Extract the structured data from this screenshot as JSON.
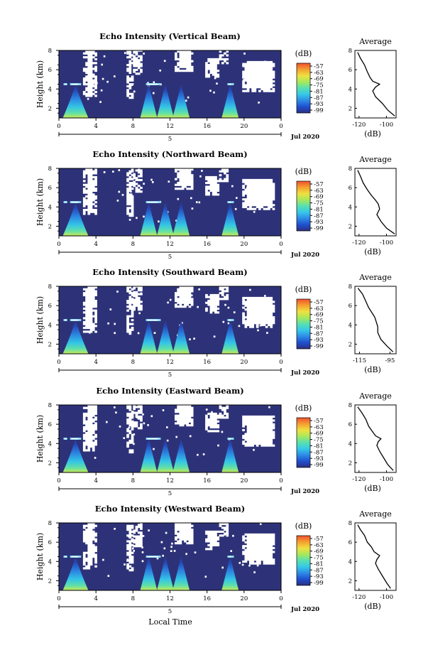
{
  "figure": {
    "xlabel": "Local Time",
    "date_label": "Jul 2020",
    "colorbar_unit": "(dB)",
    "colorbar_ticks": [
      "-57",
      "-63",
      "-69",
      "-75",
      "-81",
      "-87",
      "-93",
      "-99"
    ],
    "colorscale": [
      "#2d2f80",
      "#1f4fcf",
      "#2e8be6",
      "#36c8e8",
      "#58e0b0",
      "#a8e85a",
      "#f0e040",
      "#f5a030",
      "#f05030"
    ],
    "colors": {
      "background_fill": "#2d3278",
      "no_data": "#ffffff",
      "axis": "#000000"
    },
    "average_title": "Average",
    "average_xlabel": "(dB)"
  },
  "chart_data": [
    {
      "type": "heatmap",
      "title": "Echo Intensity (Vertical Beam)",
      "ylabel": "Height (km)",
      "xlabel": "Local Time",
      "x_ticks": [
        "0",
        "4",
        "8",
        "12",
        "16",
        "20",
        "0"
      ],
      "x_day_label": "5",
      "y_ticks": [
        "8",
        "6",
        "4",
        "2"
      ],
      "xlim_hours": [
        0,
        24
      ],
      "ylim_km": [
        1,
        8
      ],
      "colorbar": {
        "unit": "(dB)",
        "range": [
          -99,
          -57
        ]
      },
      "plumes_hours": [
        1.8,
        9.7,
        11.5,
        13.2,
        18.5
      ],
      "bright_layer_km": 4.5,
      "average_profile": {
        "title": "Average",
        "xlabel": "(dB)",
        "x_ticks": [
          "-120",
          "-100"
        ],
        "y_ticks": [
          "8",
          "6",
          "4",
          "2"
        ],
        "xlim": [
          -123,
          -93
        ],
        "height_km": [
          1.2,
          1.8,
          2.5,
          3.2,
          3.8,
          4.2,
          4.5,
          4.8,
          5.2,
          5.8,
          6.5,
          7.2,
          7.8
        ],
        "values_db": [
          -94,
          -99,
          -103,
          -108,
          -110,
          -108,
          -105,
          -110,
          -112,
          -114,
          -116,
          -119,
          -121
        ]
      }
    },
    {
      "type": "heatmap",
      "title": "Echo Intensity (Northward Beam)",
      "ylabel": "Height (km)",
      "xlabel": "Local Time",
      "x_ticks": [
        "0",
        "4",
        "8",
        "12",
        "16",
        "20",
        "0"
      ],
      "x_day_label": "5",
      "y_ticks": [
        "8",
        "6",
        "4",
        "2"
      ],
      "xlim_hours": [
        0,
        24
      ],
      "ylim_km": [
        1,
        8
      ],
      "colorbar": {
        "unit": "(dB)",
        "range": [
          -99,
          -57
        ]
      },
      "plumes_hours": [
        1.8,
        9.7,
        11.5,
        13.2,
        18.5
      ],
      "bright_layer_km": 4.5,
      "average_profile": {
        "title": "Average",
        "xlabel": "(dB)",
        "x_ticks": [
          "-120",
          "-100"
        ],
        "y_ticks": [
          "8",
          "6",
          "4",
          "2"
        ],
        "xlim": [
          -123,
          -93
        ],
        "height_km": [
          1.2,
          1.8,
          2.5,
          3.2,
          3.8,
          4.3,
          4.7,
          5.2,
          5.8,
          6.5,
          7.2,
          7.8
        ],
        "values_db": [
          -94,
          -100,
          -104,
          -107,
          -105,
          -106,
          -108,
          -111,
          -114,
          -117,
          -119,
          -121
        ]
      }
    },
    {
      "type": "heatmap",
      "title": "Echo Intensity (Southward Beam)",
      "ylabel": "Height (km)",
      "xlabel": "Local Time",
      "x_ticks": [
        "0",
        "4",
        "8",
        "12",
        "16",
        "20",
        "0"
      ],
      "x_day_label": "5",
      "y_ticks": [
        "8",
        "6",
        "4",
        "2"
      ],
      "xlim_hours": [
        0,
        24
      ],
      "ylim_km": [
        1,
        8
      ],
      "colorbar": {
        "unit": "(dB)",
        "range": [
          -99,
          -57
        ]
      },
      "plumes_hours": [
        1.8,
        9.7,
        11.5,
        13.2,
        18.5
      ],
      "bright_layer_km": 4.5,
      "average_profile": {
        "title": "Average",
        "xlabel": "(dB)",
        "x_ticks": [
          "-115",
          "-95"
        ],
        "y_ticks": [
          "8",
          "6",
          "4",
          "2"
        ],
        "xlim": [
          -118,
          -91
        ],
        "height_km": [
          1.2,
          1.8,
          2.5,
          3.2,
          3.8,
          4.3,
          4.8,
          5.3,
          5.8,
          6.5,
          7.2,
          7.8
        ],
        "values_db": [
          -93,
          -97,
          -101,
          -103,
          -103,
          -104,
          -105,
          -107,
          -109,
          -111,
          -113,
          -116
        ]
      }
    },
    {
      "type": "heatmap",
      "title": "Echo Intensity (Eastward Beam)",
      "ylabel": "Height (km)",
      "xlabel": "Local Time",
      "x_ticks": [
        "0",
        "4",
        "8",
        "12",
        "16",
        "20",
        "0"
      ],
      "x_day_label": "5",
      "y_ticks": [
        "8",
        "6",
        "4",
        "2"
      ],
      "xlim_hours": [
        0,
        24
      ],
      "ylim_km": [
        1,
        8
      ],
      "colorbar": {
        "unit": "(dB)",
        "range": [
          -99,
          -57
        ]
      },
      "plumes_hours": [
        1.8,
        9.7,
        11.5,
        13.2,
        18.5
      ],
      "bright_layer_km": 4.5,
      "average_profile": {
        "title": "Average",
        "xlabel": "(dB)",
        "x_ticks": [
          "-120",
          "-100"
        ],
        "y_ticks": [
          "8",
          "6",
          "4",
          "2"
        ],
        "xlim": [
          -123,
          -93
        ],
        "height_km": [
          1.2,
          1.8,
          2.5,
          3.2,
          3.8,
          4.2,
          4.5,
          4.8,
          5.2,
          5.8,
          6.5,
          7.2,
          7.8
        ],
        "values_db": [
          -95,
          -99,
          -102,
          -105,
          -107,
          -106,
          -104,
          -108,
          -110,
          -113,
          -115,
          -118,
          -121
        ]
      }
    },
    {
      "type": "heatmap",
      "title": "Echo Intensity (Westward Beam)",
      "ylabel": "Height (km)",
      "xlabel": "Local Time",
      "x_ticks": [
        "0",
        "4",
        "8",
        "12",
        "16",
        "20",
        "0"
      ],
      "x_day_label": "5",
      "y_ticks": [
        "8",
        "6",
        "4",
        "2"
      ],
      "xlim_hours": [
        0,
        24
      ],
      "ylim_km": [
        1,
        8
      ],
      "colorbar": {
        "unit": "(dB)",
        "range": [
          -99,
          -57
        ]
      },
      "plumes_hours": [
        1.8,
        9.7,
        11.5,
        13.2,
        18.5
      ],
      "bright_layer_km": 4.5,
      "average_profile": {
        "title": "Average",
        "xlabel": "(dB)",
        "x_ticks": [
          "-120",
          "-100"
        ],
        "y_ticks": [
          "8",
          "6",
          "4",
          "2"
        ],
        "xlim": [
          -123,
          -93
        ],
        "height_km": [
          1.2,
          1.8,
          2.5,
          3.2,
          3.8,
          4.2,
          4.6,
          5.0,
          5.5,
          6.0,
          6.7,
          7.3,
          7.8
        ],
        "values_db": [
          -97,
          -100,
          -103,
          -106,
          -108,
          -107,
          -105,
          -109,
          -111,
          -114,
          -116,
          -119,
          -121
        ]
      }
    }
  ]
}
